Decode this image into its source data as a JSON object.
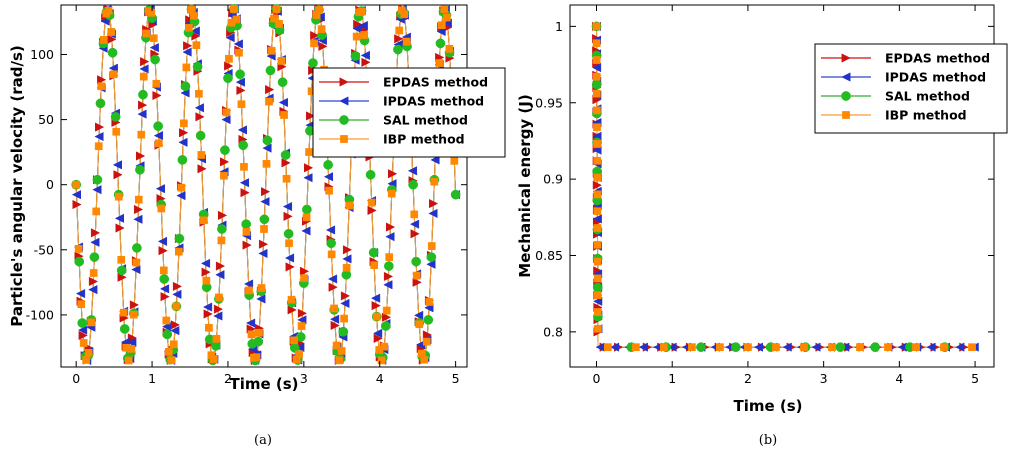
{
  "colors": {
    "EPDAS": "#cc1111",
    "IPDAS": "#2233cc",
    "SAL": "#22bb22",
    "IBP": "#ff8800",
    "line_epdas": "#cc1111",
    "line_ipdas": "#3344cc",
    "line_sal": "#33aa33",
    "line_ibp": "#ff9933"
  },
  "chart_data": [
    {
      "type": "line",
      "caption": "(a)",
      "xlabel": "Time (s)",
      "ylabel": "Particle's angular velocity (rad/s)",
      "xlim": [
        -0.2,
        5.15
      ],
      "ylim": [
        -140,
        138
      ],
      "xticks": [
        0,
        1,
        2,
        3,
        4,
        5
      ],
      "xtick_labels": [
        "0",
        "1",
        "2",
        "3",
        "4",
        "5"
      ],
      "yticks": [
        -100,
        -50,
        0,
        50,
        100
      ],
      "ytick_labels": [
        "-100",
        "-50",
        "0",
        "50",
        "100"
      ],
      "legend": {
        "position": "top-right",
        "entries": [
          {
            "label": "EPDAS method",
            "marker": "triangle-right",
            "color_key": "EPDAS"
          },
          {
            "label": "IPDAS method",
            "marker": "triangle-left",
            "color_key": "IPDAS"
          },
          {
            "label": "SAL method",
            "marker": "circle",
            "color_key": "SAL"
          },
          {
            "label": "IBP method",
            "marker": "square",
            "color_key": "IBP"
          }
        ]
      },
      "signal": {
        "amplitude": 135,
        "period_s": 0.555,
        "phase_sign": -1
      },
      "series": [
        {
          "name": "EPDAS method",
          "marker_dt": 0.027,
          "t0": 0.01
        },
        {
          "name": "IPDAS method",
          "marker_dt": 0.027,
          "t0": 0.005
        },
        {
          "name": "SAL method",
          "marker_dt": 0.04,
          "t0": 0.0
        },
        {
          "name": "IBP method",
          "marker_dt": 0.033,
          "t0": 0.0
        }
      ],
      "t_max": 5.0
    },
    {
      "type": "line",
      "caption": "(b)",
      "xlabel": "Time (s)",
      "ylabel": "Mechanical energy (J)",
      "xlim": [
        -0.35,
        5.25
      ],
      "ylim": [
        0.777,
        1.014
      ],
      "xticks": [
        0,
        1,
        2,
        3,
        4,
        5
      ],
      "xtick_labels": [
        "0",
        "1",
        "2",
        "3",
        "4",
        "5"
      ],
      "yticks": [
        0.8,
        0.85,
        0.9,
        0.95,
        1.0
      ],
      "ytick_labels": [
        "0.8",
        "0.85",
        "0.9",
        "0.95",
        "1"
      ],
      "legend": {
        "position": "top-right",
        "entries": [
          {
            "label": "EPDAS method",
            "marker": "triangle-right",
            "color_key": "EPDAS"
          },
          {
            "label": "IPDAS method",
            "marker": "triangle-left",
            "color_key": "IPDAS"
          },
          {
            "label": "SAL method",
            "marker": "circle",
            "color_key": "SAL"
          },
          {
            "label": "IBP method",
            "marker": "square",
            "color_key": "IBP"
          }
        ]
      },
      "energy": {
        "initial": 1.0,
        "final": 0.79,
        "drop_time_s": 0.02
      },
      "series": [
        {
          "name": "EPDAS method",
          "vertical_dy": 0.008,
          "horiz_dx": 0.19,
          "t0": 0.1
        },
        {
          "name": "IPDAS method",
          "vertical_dy": 0.009,
          "horiz_dx": 0.19,
          "t0": 0.05
        },
        {
          "name": "SAL method",
          "vertical_dy": 0.019,
          "horiz_dx": 0.46,
          "t0": 0.46
        },
        {
          "name": "IBP method",
          "vertical_dy": 0.011,
          "horiz_dx": 0.37,
          "t0": 0.15
        }
      ],
      "t_max": 5.0
    }
  ]
}
